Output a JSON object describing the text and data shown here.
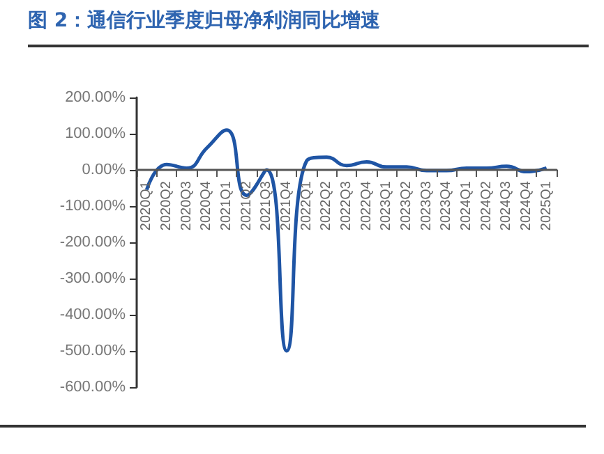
{
  "chart_data": {
    "type": "line",
    "title": "图 2：通信行业季度归母净利润同比增速",
    "categories": [
      "2020Q1",
      "2020Q2",
      "2020Q3",
      "2020Q4",
      "2021Q1",
      "2021Q2",
      "2021Q3",
      "2021Q4",
      "2022Q1",
      "2022Q2",
      "2022Q3",
      "2022Q4",
      "2023Q1",
      "2023Q2",
      "2023Q3",
      "2023Q4",
      "2024Q1",
      "2024Q2",
      "2024Q3",
      "2024Q4",
      "2025Q1"
    ],
    "series": [
      {
        "color": "#1f55a5",
        "values": [
          -55,
          15,
          5,
          60,
          110,
          -70,
          0,
          -500,
          25,
          35,
          12,
          22,
          8,
          8,
          -2,
          -2,
          5,
          5,
          10,
          -5,
          5
        ]
      }
    ],
    "ylim": [
      -600,
      200
    ],
    "yticks": [
      {
        "value": -600,
        "label": "-600.00%"
      },
      {
        "value": -500,
        "label": "-500.00%"
      },
      {
        "value": -400,
        "label": "-400.00%"
      },
      {
        "value": -300,
        "label": "-300.00%"
      },
      {
        "value": -200,
        "label": "-200.00%"
      },
      {
        "value": -100,
        "label": "-100.00%"
      },
      {
        "value": 0,
        "label": "0.00%"
      },
      {
        "value": 100,
        "label": "100.00%"
      },
      {
        "value": 200,
        "label": "200.00%"
      }
    ],
    "marker": "none",
    "line_style": "solid"
  }
}
